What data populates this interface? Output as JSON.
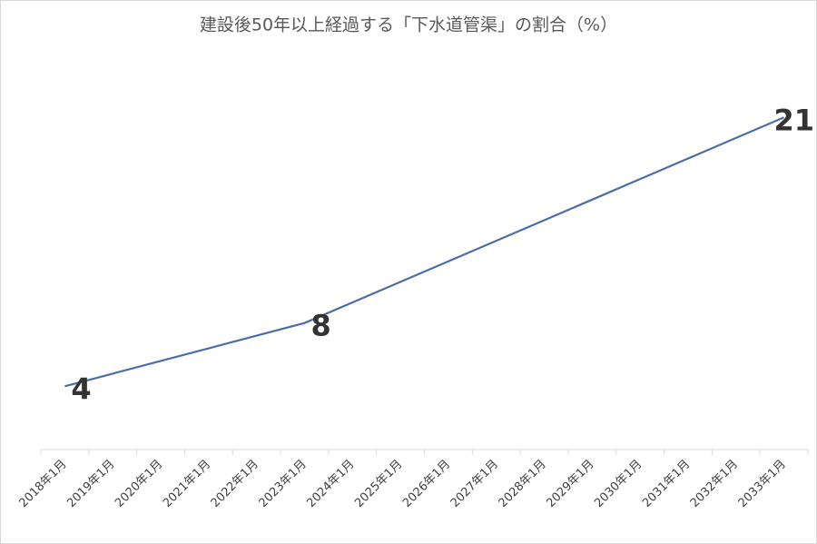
{
  "chart_data": {
    "type": "line",
    "title": "建設後50年以上経過する「下水道管渠」の割合（%）",
    "categories": [
      "2018年1月",
      "2019年1月",
      "2020年1月",
      "2021年1月",
      "2022年1月",
      "2023年1月",
      "2024年1月",
      "2025年1月",
      "2026年1月",
      "2027年1月",
      "2028年1月",
      "2029年1月",
      "2030年1月",
      "2031年1月",
      "2032年1月",
      "2033年1月"
    ],
    "series": [
      {
        "color": "#4a6ea8",
        "values": [
          4,
          4.8,
          5.6,
          6.4,
          7.2,
          8,
          9.3,
          10.6,
          11.9,
          13.2,
          14.5,
          15.8,
          17.1,
          18.4,
          19.7,
          21
        ],
        "value_labels": [
          "4",
          null,
          null,
          null,
          null,
          "8",
          null,
          null,
          null,
          null,
          null,
          null,
          null,
          null,
          null,
          "21"
        ]
      }
    ],
    "ylim": [
      0,
      24
    ]
  }
}
